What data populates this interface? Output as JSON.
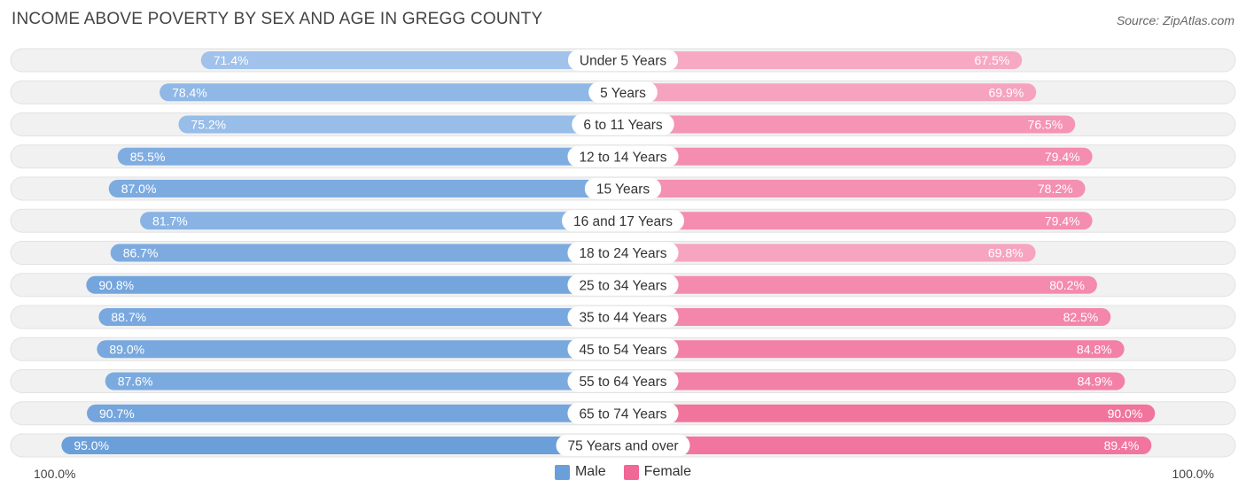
{
  "header": {
    "title": "INCOME ABOVE POVERTY BY SEX AND AGE IN GREGG COUNTY",
    "source": "Source: ZipAtlas.com"
  },
  "axis": {
    "left_label": "100.0%",
    "right_label": "100.0%"
  },
  "legend": {
    "male_label": "Male",
    "female_label": "Female"
  },
  "colors": {
    "male_light": "#a9c8ee",
    "male_dark": "#6a9fda",
    "female_light": "#f7a9c3",
    "female_dark": "#f06895",
    "track": "#eeeeee"
  },
  "chart_data": {
    "type": "bar",
    "orientation": "horizontal-diverging",
    "title": "INCOME ABOVE POVERTY BY SEX AND AGE IN GREGG COUNTY",
    "xlim": [
      0,
      100
    ],
    "units": "%",
    "categories": [
      "Under 5 Years",
      "5 Years",
      "6 to 11 Years",
      "12 to 14 Years",
      "15 Years",
      "16 and 17 Years",
      "18 to 24 Years",
      "25 to 34 Years",
      "35 to 44 Years",
      "45 to 54 Years",
      "55 to 64 Years",
      "65 to 74 Years",
      "75 Years and over"
    ],
    "series": [
      {
        "name": "Male",
        "values": [
          71.4,
          78.4,
          75.2,
          85.5,
          87.0,
          81.7,
          86.7,
          90.8,
          88.7,
          89.0,
          87.6,
          90.7,
          95.0
        ],
        "labels": [
          "71.4%",
          "78.4%",
          "75.2%",
          "85.5%",
          "87.0%",
          "81.7%",
          "86.7%",
          "90.8%",
          "88.7%",
          "89.0%",
          "87.6%",
          "90.7%",
          "95.0%"
        ]
      },
      {
        "name": "Female",
        "values": [
          67.5,
          69.9,
          76.5,
          79.4,
          78.2,
          79.4,
          69.8,
          80.2,
          82.5,
          84.8,
          84.9,
          90.0,
          89.4
        ],
        "labels": [
          "67.5%",
          "69.9%",
          "76.5%",
          "79.4%",
          "78.2%",
          "79.4%",
          "69.8%",
          "80.2%",
          "82.5%",
          "84.8%",
          "84.9%",
          "90.0%",
          "89.4%"
        ]
      }
    ]
  }
}
